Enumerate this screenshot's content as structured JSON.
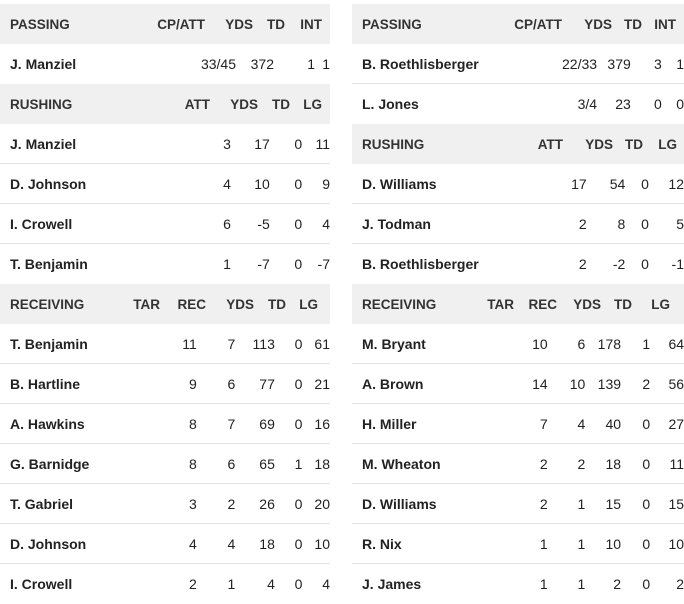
{
  "left": {
    "passing": {
      "header": [
        "PASSING",
        "CP/ATT",
        "YDS",
        "TD",
        "INT"
      ],
      "rows": [
        [
          "J. Manziel",
          "33/45",
          "372",
          "1",
          "1"
        ]
      ]
    },
    "rushing": {
      "header": [
        "RUSHING",
        "ATT",
        "YDS",
        "TD",
        "LG"
      ],
      "rows": [
        [
          "J. Manziel",
          "3",
          "17",
          "0",
          "11"
        ],
        [
          "D. Johnson",
          "4",
          "10",
          "0",
          "9"
        ],
        [
          "I. Crowell",
          "6",
          "-5",
          "0",
          "4"
        ],
        [
          "T. Benjamin",
          "1",
          "-7",
          "0",
          "-7"
        ]
      ]
    },
    "receiving": {
      "header": [
        "RECEIVING",
        "TAR",
        "REC",
        "YDS",
        "TD",
        "LG"
      ],
      "rows": [
        [
          "T. Benjamin",
          "11",
          "7",
          "113",
          "0",
          "61"
        ],
        [
          "B. Hartline",
          "9",
          "6",
          "77",
          "0",
          "21"
        ],
        [
          "A. Hawkins",
          "8",
          "7",
          "69",
          "0",
          "16"
        ],
        [
          "G. Barnidge",
          "8",
          "6",
          "65",
          "1",
          "18"
        ],
        [
          "T. Gabriel",
          "3",
          "2",
          "26",
          "0",
          "20"
        ],
        [
          "D. Johnson",
          "4",
          "4",
          "18",
          "0",
          "10"
        ],
        [
          "I. Crowell",
          "2",
          "1",
          "4",
          "0",
          "4"
        ]
      ]
    }
  },
  "right": {
    "passing": {
      "header": [
        "PASSING",
        "CP/ATT",
        "YDS",
        "TD",
        "INT"
      ],
      "rows": [
        [
          "B. Roethlisberger",
          "22/33",
          "379",
          "3",
          "1"
        ],
        [
          "L. Jones",
          "3/4",
          "23",
          "0",
          "0"
        ]
      ]
    },
    "rushing": {
      "header": [
        "RUSHING",
        "ATT",
        "YDS",
        "TD",
        "LG"
      ],
      "rows": [
        [
          "D. Williams",
          "17",
          "54",
          "0",
          "12"
        ],
        [
          "J. Todman",
          "2",
          "8",
          "0",
          "5"
        ],
        [
          "B. Roethlisberger",
          "2",
          "-2",
          "0",
          "-1"
        ]
      ]
    },
    "receiving": {
      "header": [
        "RECEIVING",
        "TAR",
        "REC",
        "YDS",
        "TD",
        "LG"
      ],
      "rows": [
        [
          "M. Bryant",
          "10",
          "6",
          "178",
          "1",
          "64"
        ],
        [
          "A. Brown",
          "14",
          "10",
          "139",
          "2",
          "56"
        ],
        [
          "H. Miller",
          "7",
          "4",
          "40",
          "0",
          "27"
        ],
        [
          "M. Wheaton",
          "2",
          "2",
          "18",
          "0",
          "11"
        ],
        [
          "D. Williams",
          "2",
          "1",
          "15",
          "0",
          "15"
        ],
        [
          "R. Nix",
          "1",
          "1",
          "10",
          "0",
          "10"
        ],
        [
          "J. James",
          "1",
          "1",
          "2",
          "0",
          "2"
        ]
      ]
    }
  }
}
